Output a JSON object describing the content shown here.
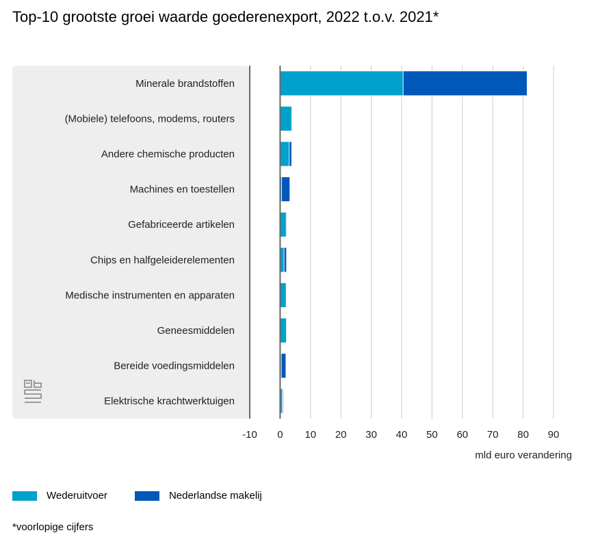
{
  "title": "Top-10 grootste groei waarde goederenexport, 2022 t.o.v. 2021*",
  "footnote": "*voorlopige cijfers",
  "unit_label": "mld euro verandering",
  "logo_icon": "cbs-logo-icon",
  "colors": {
    "wederuitvoer": "#00a1cd",
    "nederlandse_makelij": "#0058b8",
    "panel_bg": "#eeeeee",
    "grid": "#cccccc",
    "axis": "#666666"
  },
  "chart_data": {
    "type": "bar",
    "orientation": "horizontal",
    "stacked": true,
    "title": "Top-10 grootste groei waarde goederenexport, 2022 t.o.v. 2021*",
    "xlabel": "mld euro verandering",
    "xlim": [
      -10,
      90
    ],
    "xticks": [
      -10,
      0,
      10,
      20,
      30,
      40,
      50,
      60,
      70,
      80,
      90
    ],
    "grid": true,
    "legend_position": "bottom-left",
    "categories": [
      "Minerale brandstoffen",
      "(Mobiele) telefoons, modems, routers",
      "Andere chemische producten",
      "Machines en toestellen",
      "Gefabriceerde artikelen",
      "Chips en halfgeleiderelementen",
      "Medische instrumenten en apparaten",
      "Geneesmiddelen",
      "Bereide voedingsmiddelen",
      "Elektrische krachtwerktuigen"
    ],
    "series": [
      {
        "name": "Wederuitvoer",
        "color": "#00a1cd",
        "values": [
          40.5,
          3.8,
          3.0,
          0.5,
          2.0,
          1.3,
          2.0,
          2.1,
          0.4,
          0.7
        ]
      },
      {
        "name": "Nederlandse makelij",
        "color": "#0058b8",
        "values": [
          40.8,
          0.2,
          0.8,
          2.7,
          0.2,
          0.8,
          0.1,
          0.1,
          1.5,
          0.3
        ]
      }
    ]
  }
}
